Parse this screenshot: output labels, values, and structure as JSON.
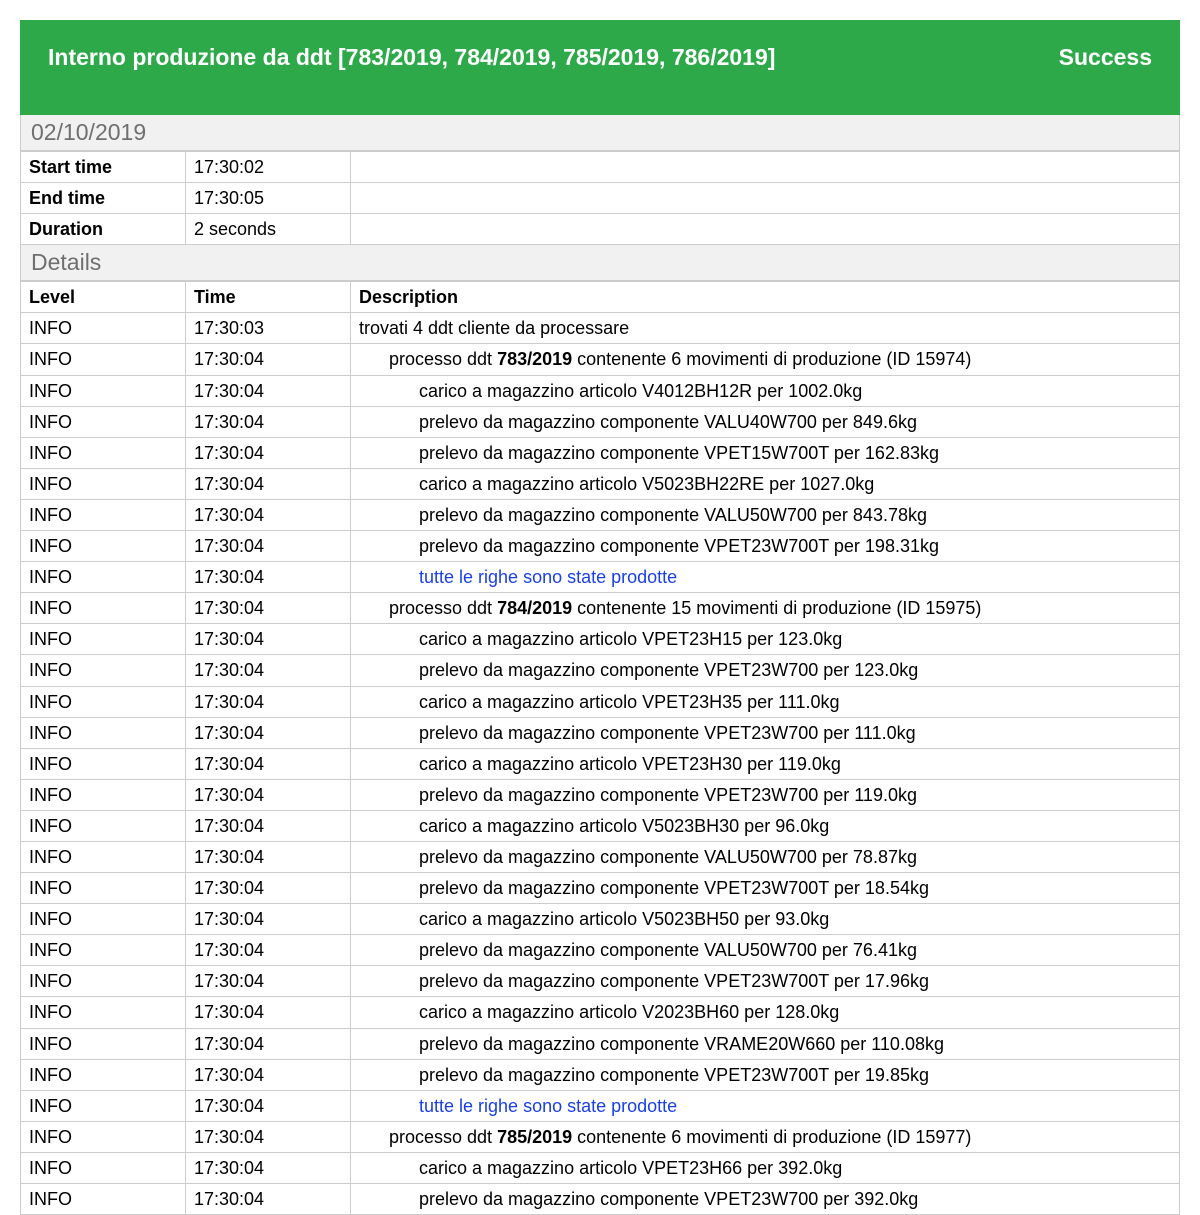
{
  "header": {
    "title": "Interno produzione da ddt [783/2019, 784/2019, 785/2019, 786/2019]",
    "status": "Success",
    "bg_color": "#2ea94a",
    "text_color": "#ffffff"
  },
  "date_section": "02/10/2019",
  "meta": {
    "start_label": "Start time",
    "start_value": "17:30:02",
    "end_label": "End time",
    "end_value": "17:30:05",
    "duration_label": "Duration",
    "duration_value": "2 seconds"
  },
  "details_section": "Details",
  "details_headers": {
    "level": "Level",
    "time": "Time",
    "description": "Description"
  },
  "link_color": "#1a3fe6",
  "rows": [
    {
      "level": "INFO",
      "time": "17:30:03",
      "indent": 0,
      "kind": "text",
      "text": "trovati 4 ddt cliente da processare"
    },
    {
      "level": "INFO",
      "time": "17:30:04",
      "indent": 1,
      "kind": "ddt",
      "pre": "processo ddt ",
      "code": "783/2019",
      "post": " contenente 6 movimenti di produzione (ID 15974)"
    },
    {
      "level": "INFO",
      "time": "17:30:04",
      "indent": 2,
      "kind": "text",
      "text": "carico a magazzino articolo V4012BH12R per 1002.0kg"
    },
    {
      "level": "INFO",
      "time": "17:30:04",
      "indent": 2,
      "kind": "text",
      "text": "prelevo da magazzino componente VALU40W700 per 849.6kg"
    },
    {
      "level": "INFO",
      "time": "17:30:04",
      "indent": 2,
      "kind": "text",
      "text": "prelevo da magazzino componente VPET15W700T per 162.83kg"
    },
    {
      "level": "INFO",
      "time": "17:30:04",
      "indent": 2,
      "kind": "text",
      "text": "carico a magazzino articolo V5023BH22RE per 1027.0kg"
    },
    {
      "level": "INFO",
      "time": "17:30:04",
      "indent": 2,
      "kind": "text",
      "text": "prelevo da magazzino componente VALU50W700 per 843.78kg"
    },
    {
      "level": "INFO",
      "time": "17:30:04",
      "indent": 2,
      "kind": "text",
      "text": "prelevo da magazzino componente VPET23W700T per 198.31kg"
    },
    {
      "level": "INFO",
      "time": "17:30:04",
      "indent": 2,
      "kind": "link",
      "text": "tutte le righe sono state prodotte"
    },
    {
      "level": "INFO",
      "time": "17:30:04",
      "indent": 1,
      "kind": "ddt",
      "pre": "processo ddt ",
      "code": "784/2019",
      "post": " contenente 15 movimenti di produzione (ID 15975)"
    },
    {
      "level": "INFO",
      "time": "17:30:04",
      "indent": 2,
      "kind": "text",
      "text": "carico a magazzino articolo VPET23H15 per 123.0kg"
    },
    {
      "level": "INFO",
      "time": "17:30:04",
      "indent": 2,
      "kind": "text",
      "text": "prelevo da magazzino componente VPET23W700 per 123.0kg"
    },
    {
      "level": "INFO",
      "time": "17:30:04",
      "indent": 2,
      "kind": "text",
      "text": "carico a magazzino articolo VPET23H35 per 111.0kg"
    },
    {
      "level": "INFO",
      "time": "17:30:04",
      "indent": 2,
      "kind": "text",
      "text": "prelevo da magazzino componente VPET23W700 per 111.0kg"
    },
    {
      "level": "INFO",
      "time": "17:30:04",
      "indent": 2,
      "kind": "text",
      "text": "carico a magazzino articolo VPET23H30 per 119.0kg"
    },
    {
      "level": "INFO",
      "time": "17:30:04",
      "indent": 2,
      "kind": "text",
      "text": "prelevo da magazzino componente VPET23W700 per 119.0kg"
    },
    {
      "level": "INFO",
      "time": "17:30:04",
      "indent": 2,
      "kind": "text",
      "text": "carico a magazzino articolo V5023BH30 per 96.0kg"
    },
    {
      "level": "INFO",
      "time": "17:30:04",
      "indent": 2,
      "kind": "text",
      "text": "prelevo da magazzino componente VALU50W700 per 78.87kg"
    },
    {
      "level": "INFO",
      "time": "17:30:04",
      "indent": 2,
      "kind": "text",
      "text": "prelevo da magazzino componente VPET23W700T per 18.54kg"
    },
    {
      "level": "INFO",
      "time": "17:30:04",
      "indent": 2,
      "kind": "text",
      "text": "carico a magazzino articolo V5023BH50 per 93.0kg"
    },
    {
      "level": "INFO",
      "time": "17:30:04",
      "indent": 2,
      "kind": "text",
      "text": "prelevo da magazzino componente VALU50W700 per 76.41kg"
    },
    {
      "level": "INFO",
      "time": "17:30:04",
      "indent": 2,
      "kind": "text",
      "text": "prelevo da magazzino componente VPET23W700T per 17.96kg"
    },
    {
      "level": "INFO",
      "time": "17:30:04",
      "indent": 2,
      "kind": "text",
      "text": "carico a magazzino articolo V2023BH60 per 128.0kg"
    },
    {
      "level": "INFO",
      "time": "17:30:04",
      "indent": 2,
      "kind": "text",
      "text": "prelevo da magazzino componente VRAME20W660 per 110.08kg"
    },
    {
      "level": "INFO",
      "time": "17:30:04",
      "indent": 2,
      "kind": "text",
      "text": "prelevo da magazzino componente VPET23W700T per 19.85kg"
    },
    {
      "level": "INFO",
      "time": "17:30:04",
      "indent": 2,
      "kind": "link",
      "text": "tutte le righe sono state prodotte"
    },
    {
      "level": "INFO",
      "time": "17:30:04",
      "indent": 1,
      "kind": "ddt",
      "pre": "processo ddt ",
      "code": "785/2019",
      "post": " contenente 6 movimenti di produzione (ID 15977)"
    },
    {
      "level": "INFO",
      "time": "17:30:04",
      "indent": 2,
      "kind": "text",
      "text": "carico a magazzino articolo VPET23H66 per 392.0kg"
    },
    {
      "level": "INFO",
      "time": "17:30:04",
      "indent": 2,
      "kind": "text",
      "text": "prelevo da magazzino componente VPET23W700 per 392.0kg"
    }
  ]
}
